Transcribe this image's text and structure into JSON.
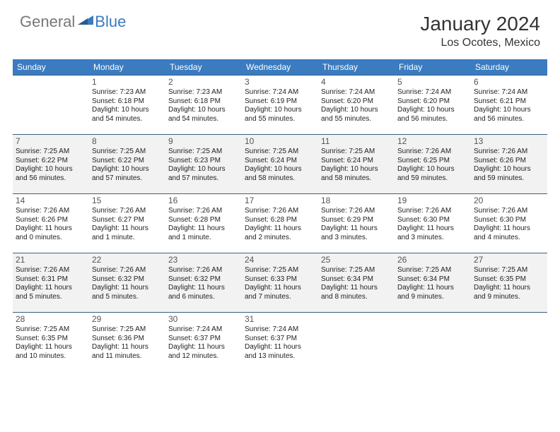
{
  "logo": {
    "general": "General",
    "blue": "Blue"
  },
  "title": "January 2024",
  "location": "Los Ocotes, Mexico",
  "colors": {
    "header_bg": "#3b7bbf",
    "header_text": "#ffffff",
    "row_border": "#3b5f7f",
    "alt_row_bg": "#f2f2f2",
    "text": "#222222",
    "daynum": "#555555",
    "logo_gray": "#777777",
    "logo_blue": "#3b7bbf"
  },
  "daysOfWeek": [
    "Sunday",
    "Monday",
    "Tuesday",
    "Wednesday",
    "Thursday",
    "Friday",
    "Saturday"
  ],
  "weeks": [
    [
      null,
      {
        "n": "1",
        "sr": "Sunrise: 7:23 AM",
        "ss": "Sunset: 6:18 PM",
        "d1": "Daylight: 10 hours",
        "d2": "and 54 minutes."
      },
      {
        "n": "2",
        "sr": "Sunrise: 7:23 AM",
        "ss": "Sunset: 6:18 PM",
        "d1": "Daylight: 10 hours",
        "d2": "and 54 minutes."
      },
      {
        "n": "3",
        "sr": "Sunrise: 7:24 AM",
        "ss": "Sunset: 6:19 PM",
        "d1": "Daylight: 10 hours",
        "d2": "and 55 minutes."
      },
      {
        "n": "4",
        "sr": "Sunrise: 7:24 AM",
        "ss": "Sunset: 6:20 PM",
        "d1": "Daylight: 10 hours",
        "d2": "and 55 minutes."
      },
      {
        "n": "5",
        "sr": "Sunrise: 7:24 AM",
        "ss": "Sunset: 6:20 PM",
        "d1": "Daylight: 10 hours",
        "d2": "and 56 minutes."
      },
      {
        "n": "6",
        "sr": "Sunrise: 7:24 AM",
        "ss": "Sunset: 6:21 PM",
        "d1": "Daylight: 10 hours",
        "d2": "and 56 minutes."
      }
    ],
    [
      {
        "n": "7",
        "sr": "Sunrise: 7:25 AM",
        "ss": "Sunset: 6:22 PM",
        "d1": "Daylight: 10 hours",
        "d2": "and 56 minutes."
      },
      {
        "n": "8",
        "sr": "Sunrise: 7:25 AM",
        "ss": "Sunset: 6:22 PM",
        "d1": "Daylight: 10 hours",
        "d2": "and 57 minutes."
      },
      {
        "n": "9",
        "sr": "Sunrise: 7:25 AM",
        "ss": "Sunset: 6:23 PM",
        "d1": "Daylight: 10 hours",
        "d2": "and 57 minutes."
      },
      {
        "n": "10",
        "sr": "Sunrise: 7:25 AM",
        "ss": "Sunset: 6:24 PM",
        "d1": "Daylight: 10 hours",
        "d2": "and 58 minutes."
      },
      {
        "n": "11",
        "sr": "Sunrise: 7:25 AM",
        "ss": "Sunset: 6:24 PM",
        "d1": "Daylight: 10 hours",
        "d2": "and 58 minutes."
      },
      {
        "n": "12",
        "sr": "Sunrise: 7:26 AM",
        "ss": "Sunset: 6:25 PM",
        "d1": "Daylight: 10 hours",
        "d2": "and 59 minutes."
      },
      {
        "n": "13",
        "sr": "Sunrise: 7:26 AM",
        "ss": "Sunset: 6:26 PM",
        "d1": "Daylight: 10 hours",
        "d2": "and 59 minutes."
      }
    ],
    [
      {
        "n": "14",
        "sr": "Sunrise: 7:26 AM",
        "ss": "Sunset: 6:26 PM",
        "d1": "Daylight: 11 hours",
        "d2": "and 0 minutes."
      },
      {
        "n": "15",
        "sr": "Sunrise: 7:26 AM",
        "ss": "Sunset: 6:27 PM",
        "d1": "Daylight: 11 hours",
        "d2": "and 1 minute."
      },
      {
        "n": "16",
        "sr": "Sunrise: 7:26 AM",
        "ss": "Sunset: 6:28 PM",
        "d1": "Daylight: 11 hours",
        "d2": "and 1 minute."
      },
      {
        "n": "17",
        "sr": "Sunrise: 7:26 AM",
        "ss": "Sunset: 6:28 PM",
        "d1": "Daylight: 11 hours",
        "d2": "and 2 minutes."
      },
      {
        "n": "18",
        "sr": "Sunrise: 7:26 AM",
        "ss": "Sunset: 6:29 PM",
        "d1": "Daylight: 11 hours",
        "d2": "and 3 minutes."
      },
      {
        "n": "19",
        "sr": "Sunrise: 7:26 AM",
        "ss": "Sunset: 6:30 PM",
        "d1": "Daylight: 11 hours",
        "d2": "and 3 minutes."
      },
      {
        "n": "20",
        "sr": "Sunrise: 7:26 AM",
        "ss": "Sunset: 6:30 PM",
        "d1": "Daylight: 11 hours",
        "d2": "and 4 minutes."
      }
    ],
    [
      {
        "n": "21",
        "sr": "Sunrise: 7:26 AM",
        "ss": "Sunset: 6:31 PM",
        "d1": "Daylight: 11 hours",
        "d2": "and 5 minutes."
      },
      {
        "n": "22",
        "sr": "Sunrise: 7:26 AM",
        "ss": "Sunset: 6:32 PM",
        "d1": "Daylight: 11 hours",
        "d2": "and 5 minutes."
      },
      {
        "n": "23",
        "sr": "Sunrise: 7:26 AM",
        "ss": "Sunset: 6:32 PM",
        "d1": "Daylight: 11 hours",
        "d2": "and 6 minutes."
      },
      {
        "n": "24",
        "sr": "Sunrise: 7:25 AM",
        "ss": "Sunset: 6:33 PM",
        "d1": "Daylight: 11 hours",
        "d2": "and 7 minutes."
      },
      {
        "n": "25",
        "sr": "Sunrise: 7:25 AM",
        "ss": "Sunset: 6:34 PM",
        "d1": "Daylight: 11 hours",
        "d2": "and 8 minutes."
      },
      {
        "n": "26",
        "sr": "Sunrise: 7:25 AM",
        "ss": "Sunset: 6:34 PM",
        "d1": "Daylight: 11 hours",
        "d2": "and 9 minutes."
      },
      {
        "n": "27",
        "sr": "Sunrise: 7:25 AM",
        "ss": "Sunset: 6:35 PM",
        "d1": "Daylight: 11 hours",
        "d2": "and 9 minutes."
      }
    ],
    [
      {
        "n": "28",
        "sr": "Sunrise: 7:25 AM",
        "ss": "Sunset: 6:35 PM",
        "d1": "Daylight: 11 hours",
        "d2": "and 10 minutes."
      },
      {
        "n": "29",
        "sr": "Sunrise: 7:25 AM",
        "ss": "Sunset: 6:36 PM",
        "d1": "Daylight: 11 hours",
        "d2": "and 11 minutes."
      },
      {
        "n": "30",
        "sr": "Sunrise: 7:24 AM",
        "ss": "Sunset: 6:37 PM",
        "d1": "Daylight: 11 hours",
        "d2": "and 12 minutes."
      },
      {
        "n": "31",
        "sr": "Sunrise: 7:24 AM",
        "ss": "Sunset: 6:37 PM",
        "d1": "Daylight: 11 hours",
        "d2": "and 13 minutes."
      },
      null,
      null,
      null
    ]
  ]
}
